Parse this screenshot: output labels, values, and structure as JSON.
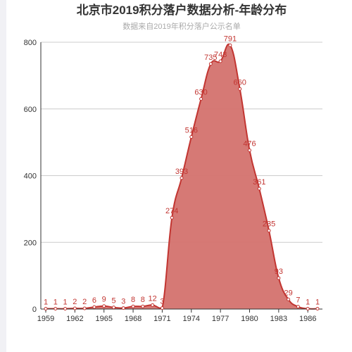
{
  "colors": {
    "series": "#c23531",
    "area_fill": "#d4726e",
    "grid": "#cccccc",
    "axis": "#333333"
  },
  "chart_data": {
    "type": "area",
    "title": "北京市2019积分落户数据分析-年龄分布",
    "subtitle": "数据来自2019年积分落户公示名单",
    "x": [
      1959,
      1960,
      1961,
      1962,
      1963,
      1964,
      1965,
      1966,
      1967,
      1968,
      1969,
      1970,
      1971,
      1972,
      1973,
      1974,
      1975,
      1976,
      1977,
      1978,
      1979,
      1980,
      1981,
      1982,
      1983,
      1984,
      1985,
      1986,
      1987
    ],
    "values": [
      1,
      1,
      1,
      2,
      2,
      6,
      9,
      5,
      3,
      8,
      8,
      12,
      3,
      274,
      393,
      516,
      630,
      735,
      743,
      791,
      660,
      476,
      361,
      235,
      93,
      29,
      7,
      1,
      1
    ],
    "x_tick_labels": [
      "1959",
      "1962",
      "1965",
      "1968",
      "1971",
      "1974",
      "1977",
      "1980",
      "1983",
      "1986"
    ],
    "y_tick_labels": [
      "0",
      "200",
      "400",
      "600",
      "800"
    ],
    "ylim": [
      0,
      800
    ],
    "grid": true,
    "smooth": true,
    "data_labels": true
  }
}
